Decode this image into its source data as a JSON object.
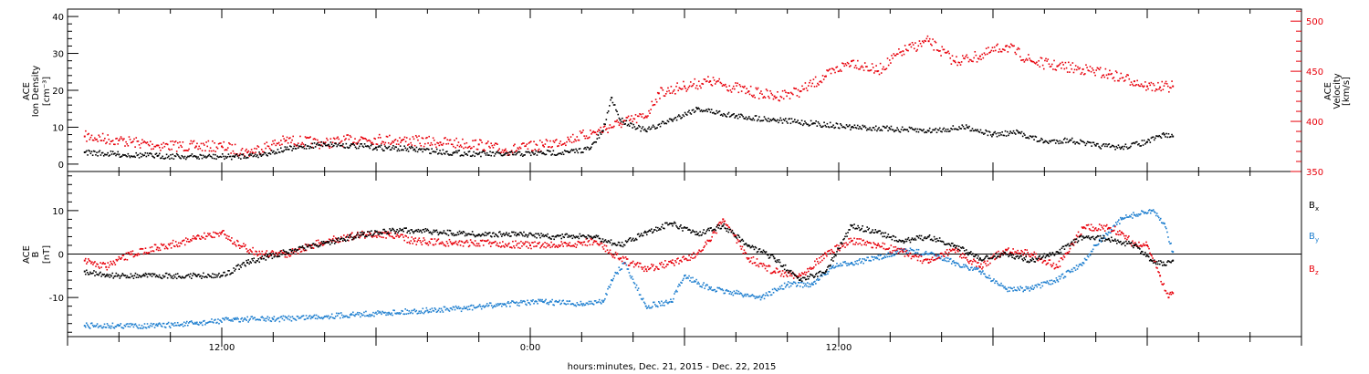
{
  "chart_data": [
    {
      "type": "scatter",
      "title": "",
      "ylabel": [
        "ACE",
        "Ion Density",
        "[cm⁻³]"
      ],
      "ylim": [
        -2,
        42
      ],
      "yticks": [
        0,
        10,
        20,
        30,
        40
      ],
      "y2label": [
        "ACE",
        "Velocity",
        "[km/s]"
      ],
      "y2lim": [
        350,
        512
      ],
      "y2ticks": [
        350,
        400,
        450,
        500
      ],
      "series": [
        {
          "axis": "left",
          "color": "#000000",
          "values": [
            [
              "2015-12-21T06:40",
              3.2
            ],
            [
              "2015-12-21T08:00",
              2.6
            ],
            [
              "2015-12-21T09:30",
              2.2
            ],
            [
              "2015-12-21T11:00",
              2.0
            ],
            [
              "2015-12-21T12:30",
              2.0
            ],
            [
              "2015-12-21T13:30",
              2.6
            ],
            [
              "2015-12-21T14:30",
              4.0
            ],
            [
              "2015-12-21T16:00",
              5.5
            ],
            [
              "2015-12-21T17:00",
              5.0
            ],
            [
              "2015-12-21T18:00",
              4.5
            ],
            [
              "2015-12-21T19:30",
              4.0
            ],
            [
              "2015-12-21T21:00",
              3.0
            ],
            [
              "2015-12-21T22:00",
              2.8
            ],
            [
              "2015-12-21T23:00",
              2.6
            ],
            [
              "2015-12-22T00:30",
              3.0
            ],
            [
              "2015-12-22T01:30",
              3.2
            ],
            [
              "2015-12-22T02:20",
              4.2
            ],
            [
              "2015-12-22T02:50",
              9.0
            ],
            [
              "2015-12-22T03:10",
              18.0
            ],
            [
              "2015-12-22T03:30",
              12.0
            ],
            [
              "2015-12-22T04:30",
              9.0
            ],
            [
              "2015-12-22T05:30",
              12.0
            ],
            [
              "2015-12-22T06:30",
              15.0
            ],
            [
              "2015-12-22T08:00",
              13.0
            ],
            [
              "2015-12-22T09:30",
              12.0
            ],
            [
              "2015-12-22T11:00",
              11.0
            ],
            [
              "2015-12-22T12:30",
              10.0
            ],
            [
              "2015-12-22T14:00",
              9.5
            ],
            [
              "2015-12-22T15:30",
              9.0
            ],
            [
              "2015-12-22T17:00",
              10.0
            ],
            [
              "2015-12-22T18:00",
              8.0
            ],
            [
              "2015-12-22T19:00",
              8.5
            ],
            [
              "2015-12-22T20:00",
              6.0
            ],
            [
              "2015-12-22T21:00",
              6.5
            ],
            [
              "2015-12-22T22:00",
              5.0
            ],
            [
              "2015-12-22T23:00",
              4.5
            ],
            [
              "2015-12-23T00:00",
              6.0
            ],
            [
              "2015-12-23T00:40",
              8.0
            ],
            [
              "2015-12-23T01:00",
              7.5
            ]
          ]
        },
        {
          "axis": "right",
          "color": "#e8000b",
          "values": [
            [
              "2015-12-21T06:40",
              385
            ],
            [
              "2015-12-21T08:00",
              381
            ],
            [
              "2015-12-21T09:30",
              376
            ],
            [
              "2015-12-21T11:00",
              375
            ],
            [
              "2015-12-21T12:00",
              375
            ],
            [
              "2015-12-21T13:00",
              369
            ],
            [
              "2015-12-21T14:30",
              381
            ],
            [
              "2015-12-21T16:00",
              378
            ],
            [
              "2015-12-21T17:30",
              383
            ],
            [
              "2015-12-21T19:00",
              381
            ],
            [
              "2015-12-21T20:30",
              379
            ],
            [
              "2015-12-21T22:00",
              377
            ],
            [
              "2015-12-21T23:00",
              371
            ],
            [
              "2015-12-22T00:30",
              376
            ],
            [
              "2015-12-22T01:30",
              382
            ],
            [
              "2015-12-22T02:30",
              389
            ],
            [
              "2015-12-22T03:30",
              398
            ],
            [
              "2015-12-22T04:30",
              405
            ],
            [
              "2015-12-22T05:00",
              428
            ],
            [
              "2015-12-22T06:00",
              435
            ],
            [
              "2015-12-22T07:00",
              440
            ],
            [
              "2015-12-22T08:30",
              430
            ],
            [
              "2015-12-22T09:30",
              425
            ],
            [
              "2015-12-22T10:30",
              430
            ],
            [
              "2015-12-22T11:30",
              445
            ],
            [
              "2015-12-22T12:30",
              460
            ],
            [
              "2015-12-22T13:30",
              450
            ],
            [
              "2015-12-22T14:30",
              470
            ],
            [
              "2015-12-22T15:30",
              480
            ],
            [
              "2015-12-22T16:30",
              460
            ],
            [
              "2015-12-22T17:30",
              465
            ],
            [
              "2015-12-22T18:30",
              475
            ],
            [
              "2015-12-22T19:30",
              460
            ],
            [
              "2015-12-22T20:30",
              455
            ],
            [
              "2015-12-22T21:30",
              452
            ],
            [
              "2015-12-22T22:30",
              447
            ],
            [
              "2015-12-22T23:30",
              440
            ],
            [
              "2015-12-23T00:00",
              435
            ],
            [
              "2015-12-23T00:30",
              434
            ],
            [
              "2015-12-23T01:00",
              435
            ]
          ]
        }
      ]
    },
    {
      "type": "scatter",
      "title": "",
      "ylabel": [
        "ACE",
        "B",
        "[nT]"
      ],
      "ylim": [
        -19,
        19
      ],
      "yticks": [
        -10,
        0,
        10
      ],
      "zero_line": true,
      "legend_position": "right",
      "series": [
        {
          "name": "B",
          "subscript": "x",
          "color": "#000000",
          "values": [
            [
              "2015-12-21T06:40",
              -4.0
            ],
            [
              "2015-12-21T07:30",
              -5.0
            ],
            [
              "2015-12-21T09:00",
              -5.0
            ],
            [
              "2015-12-21T11:00",
              -5.0
            ],
            [
              "2015-12-21T12:00",
              -5.0
            ],
            [
              "2015-12-21T13:00",
              -2.0
            ],
            [
              "2015-12-21T14:30",
              0.5
            ],
            [
              "2015-12-21T16:00",
              2.5
            ],
            [
              "2015-12-21T17:30",
              4.5
            ],
            [
              "2015-12-21T19:00",
              5.5
            ],
            [
              "2015-12-21T20:30",
              5.0
            ],
            [
              "2015-12-21T22:00",
              4.5
            ],
            [
              "2015-12-21T23:30",
              4.5
            ],
            [
              "2015-12-22T01:00",
              4.0
            ],
            [
              "2015-12-22T02:30",
              4.0
            ],
            [
              "2015-12-22T03:30",
              2.0
            ],
            [
              "2015-12-22T04:30",
              5.0
            ],
            [
              "2015-12-22T05:30",
              7.0
            ],
            [
              "2015-12-22T06:30",
              4.5
            ],
            [
              "2015-12-22T07:30",
              6.5
            ],
            [
              "2015-12-22T08:30",
              2.0
            ],
            [
              "2015-12-22T09:30",
              -1.0
            ],
            [
              "2015-12-22T10:30",
              -6.0
            ],
            [
              "2015-12-22T11:30",
              -4.0
            ],
            [
              "2015-12-22T12:30",
              6.5
            ],
            [
              "2015-12-22T13:30",
              5.0
            ],
            [
              "2015-12-22T14:30",
              3.0
            ],
            [
              "2015-12-22T15:30",
              4.0
            ],
            [
              "2015-12-22T16:30",
              2.0
            ],
            [
              "2015-12-22T17:30",
              -1.0
            ],
            [
              "2015-12-22T18:30",
              0.0
            ],
            [
              "2015-12-22T19:30",
              -1.5
            ],
            [
              "2015-12-22T20:30",
              0.5
            ],
            [
              "2015-12-22T21:30",
              4.0
            ],
            [
              "2015-12-22T22:30",
              3.5
            ],
            [
              "2015-12-22T23:30",
              2.0
            ],
            [
              "2015-12-23T00:10",
              -1.5
            ],
            [
              "2015-12-23T00:40",
              -2.5
            ],
            [
              "2015-12-23T01:00",
              -1.5
            ]
          ]
        },
        {
          "name": "B",
          "subscript": "y",
          "color": "#1f7fcf",
          "values": [
            [
              "2015-12-21T06:40",
              -16.5
            ],
            [
              "2015-12-21T08:00",
              -16.5
            ],
            [
              "2015-12-21T09:30",
              -16.5
            ],
            [
              "2015-12-21T11:00",
              -16.0
            ],
            [
              "2015-12-21T12:30",
              -15.0
            ],
            [
              "2015-12-21T14:00",
              -15.0
            ],
            [
              "2015-12-21T15:30",
              -14.5
            ],
            [
              "2015-12-21T17:00",
              -14.0
            ],
            [
              "2015-12-21T18:30",
              -13.5
            ],
            [
              "2015-12-21T20:00",
              -13.0
            ],
            [
              "2015-12-21T21:30",
              -12.5
            ],
            [
              "2015-12-21T23:00",
              -11.5
            ],
            [
              "2015-12-22T00:30",
              -11.0
            ],
            [
              "2015-12-22T02:00",
              -11.5
            ],
            [
              "2015-12-22T02:50",
              -11.0
            ],
            [
              "2015-12-22T03:10",
              -6.0
            ],
            [
              "2015-12-22T03:40",
              -2.0
            ],
            [
              "2015-12-22T04:30",
              -12.0
            ],
            [
              "2015-12-22T05:30",
              -11.0
            ],
            [
              "2015-12-22T06:00",
              -5.0
            ],
            [
              "2015-12-22T07:00",
              -8.0
            ],
            [
              "2015-12-22T08:00",
              -9.0
            ],
            [
              "2015-12-22T09:00",
              -10.0
            ],
            [
              "2015-12-22T10:00",
              -7.0
            ],
            [
              "2015-12-22T11:00",
              -7.0
            ],
            [
              "2015-12-22T11:45",
              -3.0
            ],
            [
              "2015-12-22T12:30",
              -2.0
            ],
            [
              "2015-12-22T13:30",
              -1.0
            ],
            [
              "2015-12-22T14:30",
              1.0
            ],
            [
              "2015-12-22T15:30",
              0.0
            ],
            [
              "2015-12-22T16:30",
              -2.0
            ],
            [
              "2015-12-22T17:30",
              -4.0
            ],
            [
              "2015-12-22T18:30",
              -8.0
            ],
            [
              "2015-12-22T19:30",
              -8.0
            ],
            [
              "2015-12-22T20:30",
              -6.0
            ],
            [
              "2015-12-22T21:30",
              -2.0
            ],
            [
              "2015-12-22T22:00",
              2.0
            ],
            [
              "2015-12-22T22:30",
              5.0
            ],
            [
              "2015-12-22T23:00",
              8.0
            ],
            [
              "2015-12-22T23:30",
              9.0
            ],
            [
              "2015-12-23T00:10",
              10.0
            ],
            [
              "2015-12-23T00:40",
              7.0
            ],
            [
              "2015-12-23T01:00",
              0.5
            ]
          ]
        },
        {
          "name": "B",
          "subscript": "z",
          "color": "#e8000b",
          "values": [
            [
              "2015-12-21T06:40",
              -1.5
            ],
            [
              "2015-12-21T07:30",
              -3.0
            ],
            [
              "2015-12-21T08:30",
              0.0
            ],
            [
              "2015-12-21T09:30",
              1.5
            ],
            [
              "2015-12-21T11:00",
              3.5
            ],
            [
              "2015-12-21T12:00",
              5.0
            ],
            [
              "2015-12-21T12:40",
              2.0
            ],
            [
              "2015-12-21T13:30",
              0.0
            ],
            [
              "2015-12-21T14:30",
              0.0
            ],
            [
              "2015-12-21T15:30",
              2.0
            ],
            [
              "2015-12-21T16:30",
              3.5
            ],
            [
              "2015-12-21T17:30",
              4.5
            ],
            [
              "2015-12-21T18:30",
              4.5
            ],
            [
              "2015-12-21T19:30",
              3.0
            ],
            [
              "2015-12-21T21:00",
              2.5
            ],
            [
              "2015-12-21T22:30",
              2.5
            ],
            [
              "2015-12-22T00:00",
              2.0
            ],
            [
              "2015-12-22T01:30",
              2.0
            ],
            [
              "2015-12-22T02:30",
              3.0
            ],
            [
              "2015-12-22T03:30",
              -1.0
            ],
            [
              "2015-12-22T04:30",
              -3.5
            ],
            [
              "2015-12-22T05:30",
              -2.0
            ],
            [
              "2015-12-22T06:30",
              0.0
            ],
            [
              "2015-12-22T07:00",
              3.0
            ],
            [
              "2015-12-22T07:30",
              8.0
            ],
            [
              "2015-12-22T08:30",
              -1.0
            ],
            [
              "2015-12-22T09:30",
              -4.0
            ],
            [
              "2015-12-22T10:30",
              -5.0
            ],
            [
              "2015-12-22T11:30",
              0.0
            ],
            [
              "2015-12-22T12:30",
              3.0
            ],
            [
              "2015-12-22T13:30",
              2.0
            ],
            [
              "2015-12-22T14:30",
              0.5
            ],
            [
              "2015-12-22T15:30",
              -2.0
            ],
            [
              "2015-12-22T16:30",
              1.0
            ],
            [
              "2015-12-22T17:30",
              -3.0
            ],
            [
              "2015-12-22T18:30",
              1.0
            ],
            [
              "2015-12-22T19:30",
              0.0
            ],
            [
              "2015-12-22T20:30",
              -3.0
            ],
            [
              "2015-12-22T21:30",
              6.0
            ],
            [
              "2015-12-22T22:30",
              6.0
            ],
            [
              "2015-12-22T23:00",
              5.0
            ],
            [
              "2015-12-22T23:30",
              2.0
            ],
            [
              "2015-12-23T00:00",
              2.0
            ],
            [
              "2015-12-23T00:30",
              -5.0
            ],
            [
              "2015-12-23T00:50",
              -10.0
            ],
            [
              "2015-12-23T01:00",
              -9.0
            ]
          ]
        }
      ]
    }
  ],
  "x_axis": {
    "label": "hours:minutes, Dec. 21, 2015 - Dec. 22, 2015",
    "xlim": [
      "2015-12-21T06:00",
      "2015-12-23T06:00"
    ],
    "major_ticks": [
      {
        "t": "2015-12-21T12:00",
        "label": "12:00"
      },
      {
        "t": "2015-12-22T00:00",
        "label": "0:00"
      },
      {
        "t": "2015-12-22T12:00",
        "label": "12:00"
      }
    ],
    "minor_tick_interval_hours": 2
  },
  "colors": {
    "black": "#000000",
    "red": "#e8000b",
    "blue": "#1f7fcf"
  }
}
